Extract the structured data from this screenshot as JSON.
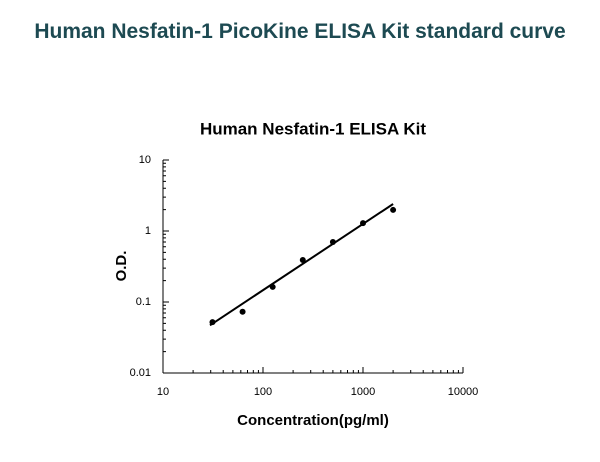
{
  "heading": "Human Nesfatin-1 PicoKine ELISA Kit standard curve",
  "chart_data": {
    "type": "scatter",
    "title": "Human Nesfatin-1 ELISA Kit",
    "x_label": "Concentration(pg/ml)",
    "y_label": "O.D.",
    "x_log": true,
    "y_log": true,
    "minor_ticks": true,
    "xlim": [
      10,
      10000
    ],
    "xticks": [
      10,
      100,
      1000,
      10000
    ],
    "ylim": [
      0.01,
      10
    ],
    "yticks": [
      10,
      1,
      0.1,
      0.01
    ],
    "color": "#000000",
    "x": [
      31.25,
      62.5,
      125,
      250,
      500,
      1000,
      2000
    ],
    "values": [
      0.052,
      0.073,
      0.163,
      0.39,
      0.7,
      1.29,
      1.98
    ],
    "fit": {
      "x": [
        29.5,
        2000
      ],
      "y": [
        0.047,
        2.4
      ]
    }
  }
}
